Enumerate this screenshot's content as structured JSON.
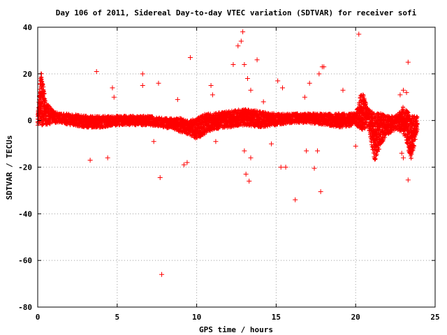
{
  "chart_data": {
    "type": "scatter",
    "title": "Day 106 of 2011, Sidereal Day-to-day VTEC variation (SDTVAR) for receiver sofi",
    "xlabel": "GPS time / hours",
    "ylabel": "SDTVAR / TECUs",
    "xlim": [
      0,
      25
    ],
    "ylim": [
      -80,
      40
    ],
    "xticks": [
      "0",
      "5",
      "10",
      "15",
      "20",
      "25"
    ],
    "yticks": [
      "40",
      "20",
      "0",
      "-20",
      "-40",
      "-60",
      "-80"
    ],
    "grid": true,
    "marker": "plus",
    "color": "#ff0000",
    "band": {
      "x": [
        0.0,
        0.2,
        0.5,
        1.0,
        1.5,
        2.0,
        3.0,
        4.0,
        5.0,
        6.0,
        7.0,
        8.0,
        9.0,
        9.5,
        10.0,
        10.5,
        11.0,
        12.0,
        13.0,
        14.0,
        15.0,
        16.0,
        17.0,
        18.0,
        19.0,
        20.0,
        20.4,
        20.8,
        21.2,
        21.6,
        22.0,
        22.5,
        23.0,
        23.5,
        23.9
      ],
      "low": [
        -2,
        -2,
        -2,
        -1,
        -1,
        -2,
        -3,
        -3,
        -2,
        -2,
        -2,
        -3,
        -5,
        -6,
        -8,
        -6,
        -4,
        -3,
        -2,
        -3,
        -2,
        -1,
        -1,
        -2,
        -3,
        -2,
        -4,
        -3,
        -18,
        -10,
        -6,
        -4,
        -5,
        -17,
        -4
      ],
      "high": [
        3,
        22,
        8,
        4,
        3,
        3,
        2,
        2,
        2,
        2,
        2,
        1,
        1,
        0,
        1,
        3,
        3,
        4,
        5,
        4,
        3,
        3,
        3,
        3,
        3,
        3,
        13,
        5,
        3,
        3,
        2,
        2,
        6,
        2,
        2
      ]
    },
    "outliers": [
      [
        3.3,
        -17
      ],
      [
        3.7,
        21
      ],
      [
        4.4,
        -16
      ],
      [
        4.7,
        14
      ],
      [
        4.8,
        10
      ],
      [
        6.6,
        20
      ],
      [
        6.6,
        15
      ],
      [
        7.3,
        -9
      ],
      [
        7.6,
        16
      ],
      [
        7.7,
        -24.5
      ],
      [
        7.8,
        -66
      ],
      [
        8.8,
        9
      ],
      [
        9.2,
        -19
      ],
      [
        9.4,
        -18
      ],
      [
        9.6,
        27
      ],
      [
        10.9,
        15
      ],
      [
        11.0,
        11
      ],
      [
        11.2,
        -9
      ],
      [
        12.3,
        24
      ],
      [
        12.6,
        32
      ],
      [
        12.8,
        34
      ],
      [
        12.9,
        38
      ],
      [
        13.0,
        -13
      ],
      [
        13.0,
        24
      ],
      [
        13.1,
        -23
      ],
      [
        13.2,
        18
      ],
      [
        13.3,
        -26
      ],
      [
        13.4,
        13
      ],
      [
        13.4,
        -16
      ],
      [
        13.8,
        26
      ],
      [
        14.2,
        8
      ],
      [
        14.7,
        -10
      ],
      [
        15.1,
        17
      ],
      [
        15.3,
        -20
      ],
      [
        15.4,
        14
      ],
      [
        15.6,
        -20
      ],
      [
        16.2,
        -34
      ],
      [
        16.8,
        10
      ],
      [
        16.9,
        -13
      ],
      [
        17.1,
        16
      ],
      [
        17.4,
        -20.5
      ],
      [
        17.6,
        -13
      ],
      [
        17.7,
        20
      ],
      [
        17.8,
        -30.5
      ],
      [
        17.9,
        23
      ],
      [
        18.0,
        23
      ],
      [
        19.2,
        13
      ],
      [
        20.0,
        -11
      ],
      [
        20.2,
        37
      ],
      [
        22.8,
        11
      ],
      [
        22.9,
        -14
      ],
      [
        23.0,
        13
      ],
      [
        23.0,
        -16
      ],
      [
        23.2,
        12
      ],
      [
        23.3,
        25
      ],
      [
        23.3,
        -25.5
      ]
    ]
  }
}
